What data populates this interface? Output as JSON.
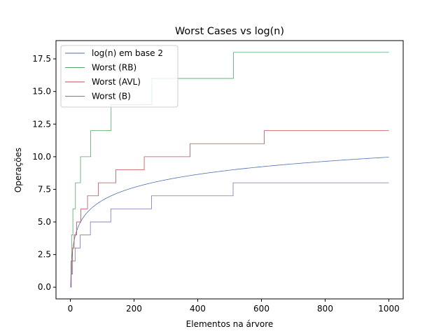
{
  "chart_data": {
    "type": "line",
    "title": "Worst Cases vs log(n)",
    "xlabel": "Elementos na árvore",
    "ylabel": "Operações",
    "xlim": [
      -45,
      1045
    ],
    "ylim": [
      -0.9,
      18.9
    ],
    "xticks": [
      0,
      200,
      400,
      600,
      800,
      1000
    ],
    "xtick_labels": [
      "0",
      "200",
      "400",
      "600",
      "800",
      "1000"
    ],
    "yticks": [
      0,
      2.5,
      5,
      7.5,
      10,
      12.5,
      15,
      17.5
    ],
    "ytick_labels": [
      "0.0",
      "2.5",
      "5.0",
      "7.5",
      "10.0",
      "12.5",
      "15.0",
      "17.5"
    ],
    "grid": false,
    "legend_position": "top-left",
    "series": [
      {
        "name": "log(n) em base 2",
        "color": "#4c72b0",
        "function": "log2",
        "x_range": [
          1,
          1000
        ]
      },
      {
        "name": "Worst (RB)",
        "color": "#55a868",
        "style": "steps",
        "x": [
          1,
          2,
          4,
          8,
          16,
          32,
          64,
          128,
          256,
          512,
          1000
        ],
        "values": [
          0,
          2,
          4,
          6,
          8,
          10,
          12,
          14,
          16,
          18,
          18
        ]
      },
      {
        "name": "Worst (AVL)",
        "color": "#c44e52",
        "style": "steps",
        "x": [
          1,
          2,
          4,
          7,
          12,
          20,
          33,
          54,
          88,
          143,
          232,
          376,
          609,
          1000
        ],
        "values": [
          0,
          1,
          2,
          3,
          4,
          5,
          6,
          7,
          8,
          9,
          10,
          11,
          12,
          12
        ]
      },
      {
        "name": "Worst (B)",
        "color": "#8172b2",
        "style": "steps",
        "x": [
          1,
          3,
          7,
          15,
          31,
          63,
          127,
          255,
          511,
          1000
        ],
        "values": [
          0,
          1,
          2,
          3,
          4,
          5,
          6,
          7,
          8,
          8
        ]
      }
    ]
  }
}
